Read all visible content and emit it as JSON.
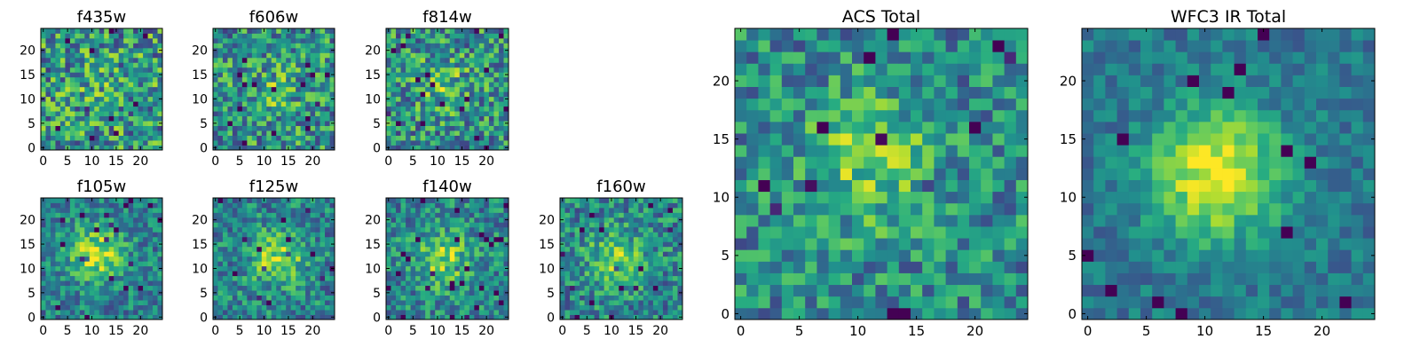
{
  "chart_data": [
    {
      "type": "heatmap",
      "title": "f435w",
      "xlim": [
        0,
        24
      ],
      "ylim": [
        0,
        24
      ],
      "xticks": [
        0,
        5,
        10,
        15,
        20
      ],
      "yticks": [
        0,
        5,
        10,
        15,
        20
      ],
      "xtick_labels": [
        "0",
        "5",
        "10",
        "15",
        "20"
      ],
      "ytick_labels": [
        "0",
        "5",
        "10",
        "15",
        "20"
      ],
      "colormap": "viridis",
      "grid_size": 25,
      "blob": [
        12,
        12,
        0.08
      ],
      "noise": 0.55,
      "seed": 11
    },
    {
      "type": "heatmap",
      "title": "f606w",
      "xlim": [
        0,
        24
      ],
      "ylim": [
        0,
        24
      ],
      "xticks": [
        0,
        5,
        10,
        15,
        20
      ],
      "yticks": [
        0,
        5,
        10,
        15,
        20
      ],
      "xtick_labels": [
        "0",
        "5",
        "10",
        "15",
        "20"
      ],
      "ytick_labels": [
        "0",
        "5",
        "10",
        "15",
        "20"
      ],
      "colormap": "viridis",
      "grid_size": 25,
      "blob": [
        12,
        12,
        0.15
      ],
      "noise": 0.5,
      "seed": 23
    },
    {
      "type": "heatmap",
      "title": "f814w",
      "xlim": [
        0,
        24
      ],
      "ylim": [
        0,
        24
      ],
      "xticks": [
        0,
        5,
        10,
        15,
        20
      ],
      "yticks": [
        0,
        5,
        10,
        15,
        20
      ],
      "xtick_labels": [
        "0",
        "5",
        "10",
        "15",
        "20"
      ],
      "ytick_labels": [
        "0",
        "5",
        "10",
        "15",
        "20"
      ],
      "colormap": "viridis",
      "grid_size": 25,
      "blob": [
        11,
        13,
        0.2
      ],
      "noise": 0.5,
      "seed": 37
    },
    {
      "type": "heatmap",
      "title": "f105w",
      "xlim": [
        0,
        24
      ],
      "ylim": [
        0,
        24
      ],
      "xticks": [
        0,
        5,
        10,
        15,
        20
      ],
      "yticks": [
        0,
        5,
        10,
        15,
        20
      ],
      "xtick_labels": [
        "0",
        "5",
        "10",
        "15",
        "20"
      ],
      "ytick_labels": [
        "0",
        "5",
        "10",
        "15",
        "20"
      ],
      "colormap": "viridis",
      "grid_size": 25,
      "blob": [
        11,
        13,
        0.45
      ],
      "noise": 0.35,
      "seed": 41
    },
    {
      "type": "heatmap",
      "title": "f125w",
      "xlim": [
        0,
        24
      ],
      "ylim": [
        0,
        24
      ],
      "xticks": [
        0,
        5,
        10,
        15,
        20
      ],
      "yticks": [
        0,
        5,
        10,
        15,
        20
      ],
      "xtick_labels": [
        "0",
        "5",
        "10",
        "15",
        "20"
      ],
      "ytick_labels": [
        "0",
        "5",
        "10",
        "15",
        "20"
      ],
      "colormap": "viridis",
      "grid_size": 25,
      "blob": [
        13,
        12,
        0.4
      ],
      "noise": 0.38,
      "seed": 53
    },
    {
      "type": "heatmap",
      "title": "f140w",
      "xlim": [
        0,
        24
      ],
      "ylim": [
        0,
        24
      ],
      "xticks": [
        0,
        5,
        10,
        15,
        20
      ],
      "yticks": [
        0,
        5,
        10,
        15,
        20
      ],
      "xtick_labels": [
        "0",
        "5",
        "10",
        "15",
        "20"
      ],
      "ytick_labels": [
        "0",
        "5",
        "10",
        "15",
        "20"
      ],
      "colormap": "viridis",
      "grid_size": 25,
      "blob": [
        11,
        12,
        0.35
      ],
      "noise": 0.38,
      "seed": 67
    },
    {
      "type": "heatmap",
      "title": "f160w",
      "xlim": [
        0,
        24
      ],
      "ylim": [
        0,
        24
      ],
      "xticks": [
        0,
        5,
        10,
        15,
        20
      ],
      "yticks": [
        0,
        5,
        10,
        15,
        20
      ],
      "xtick_labels": [
        "0",
        "5",
        "10",
        "15",
        "20"
      ],
      "ytick_labels": [
        "0",
        "5",
        "10",
        "15",
        "20"
      ],
      "colormap": "viridis",
      "grid_size": 25,
      "blob": [
        11,
        12,
        0.35
      ],
      "noise": 0.4,
      "seed": 79
    },
    {
      "type": "heatmap",
      "title": "ACS Total",
      "xlim": [
        0,
        24
      ],
      "ylim": [
        0,
        24
      ],
      "xticks": [
        0,
        5,
        10,
        15,
        20
      ],
      "yticks": [
        0,
        5,
        10,
        15,
        20
      ],
      "xtick_labels": [
        "0",
        "5",
        "10",
        "15",
        "20"
      ],
      "ytick_labels": [
        "0",
        "5",
        "10",
        "15",
        "20"
      ],
      "colormap": "viridis",
      "grid_size": 25,
      "blob": [
        11,
        13,
        0.3
      ],
      "noise": 0.4,
      "seed": 97
    },
    {
      "type": "heatmap",
      "title": "WFC3 IR Total",
      "xlim": [
        0,
        24
      ],
      "ylim": [
        0,
        24
      ],
      "xticks": [
        0,
        5,
        10,
        15,
        20
      ],
      "yticks": [
        0,
        5,
        10,
        15,
        20
      ],
      "xtick_labels": [
        "0",
        "5",
        "10",
        "15",
        "20"
      ],
      "ytick_labels": [
        "0",
        "5",
        "10",
        "15",
        "20"
      ],
      "colormap": "viridis",
      "grid_size": 25,
      "blob": [
        11,
        12,
        0.6
      ],
      "noise": 0.22,
      "seed": 113
    }
  ],
  "colors": {
    "frame": "#000000",
    "background": "#ffffff",
    "text": "#000000"
  }
}
